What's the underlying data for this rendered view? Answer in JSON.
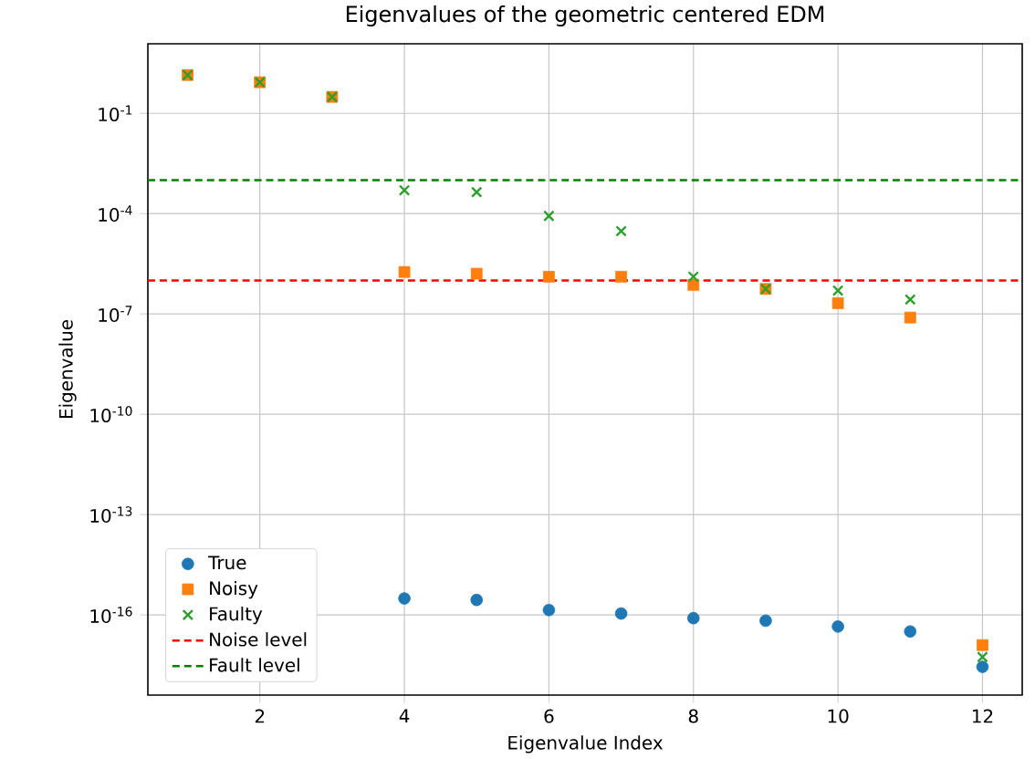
{
  "chart_data": {
    "type": "scatter",
    "title": "Eigenvalues of the geometric centered EDM",
    "xlabel": "Eigenvalue Index",
    "ylabel": "Eigenvalue",
    "x": [
      1,
      2,
      3,
      4,
      5,
      6,
      7,
      8,
      9,
      10,
      11,
      12
    ],
    "series": [
      {
        "name": "True",
        "color": "#1f77b4",
        "marker": "circle",
        "values": [
          null,
          null,
          null,
          3.1e-16,
          2.8e-16,
          1.4e-16,
          1.1e-16,
          8e-17,
          6.7e-17,
          4.5e-17,
          3.2e-17,
          2.8e-18
        ]
      },
      {
        "name": "Noisy",
        "color": "#ff7f0e",
        "marker": "square",
        "values": [
          1.4,
          0.85,
          0.31,
          1.8e-06,
          1.6e-06,
          1.3e-06,
          1.3e-06,
          7.4e-07,
          5.6e-07,
          2.1e-07,
          7.8e-08,
          1.25e-17
        ]
      },
      {
        "name": "Faulty",
        "color": "#2ca02c",
        "marker": "cross",
        "values": [
          1.4,
          0.85,
          0.31,
          0.0005,
          0.00044,
          8.5e-05,
          3e-05,
          1.3e-06,
          5.6e-07,
          5e-07,
          2.7e-07,
          5.5e-18
        ]
      }
    ],
    "ref_lines": [
      {
        "axis": "y",
        "value": 1e-06,
        "label": "Noise level",
        "color": "#ff0000",
        "line_style": "dashed"
      },
      {
        "axis": "y",
        "value": 0.001,
        "label": "Fault level",
        "color": "#008000",
        "line_style": "dashed"
      }
    ],
    "log": "y",
    "grid": true,
    "legend": "bottom left",
    "xlim": [
      0.45,
      12.55
    ],
    "ylim": [
      4e-19,
      12
    ],
    "xticks": [
      2,
      4,
      6,
      8,
      10,
      12
    ],
    "yticks": [
      {
        "value": 0.1,
        "label": "10$^{-1}$"
      },
      {
        "value": 0.0001,
        "label": "10$^{-4}$"
      },
      {
        "value": 1e-07,
        "label": "10$^{-7}$"
      },
      {
        "value": 1e-10,
        "label": "10$^{-10}$"
      },
      {
        "value": 1e-13,
        "label": "10$^{-13}$"
      },
      {
        "value": 1e-16,
        "label": "10$^{-16}$"
      }
    ]
  }
}
